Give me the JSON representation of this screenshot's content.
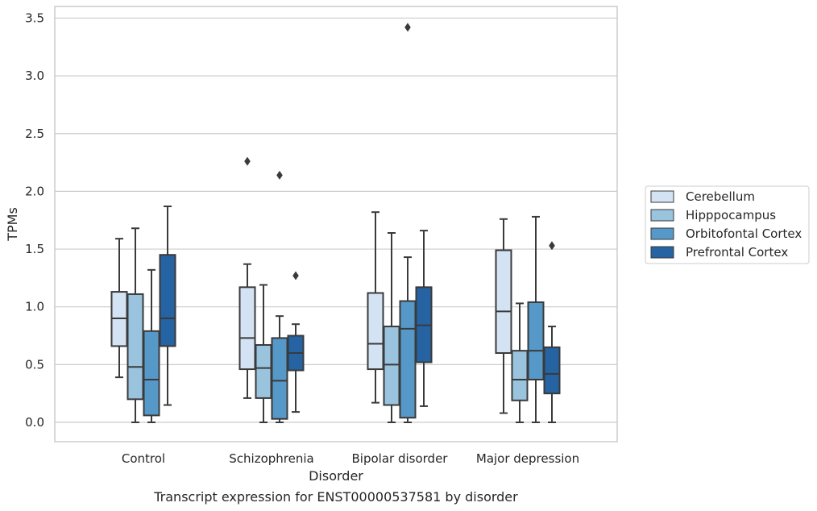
{
  "caption": "Transcript expression for ENST00000537581 by disorder",
  "chart_data": {
    "type": "boxplot",
    "xlabel": "Disorder",
    "ylabel": "TPMs",
    "ylim": [
      -0.16,
      3.6
    ],
    "yticks": [
      "0.0",
      "0.5",
      "1.0",
      "1.5",
      "2.0",
      "2.5",
      "3.0",
      "3.5"
    ],
    "grid": true,
    "legend_position": "right",
    "categories": [
      "Control",
      "Schizophrenia",
      "Bipolar disorder",
      "Major depression"
    ],
    "series": [
      {
        "name": "Cerebellum",
        "color": "#d3e3f3",
        "boxes": [
          {
            "whislo": 0.39,
            "q1": 0.66,
            "med": 0.9,
            "q3": 1.13,
            "whishi": 1.59,
            "fliers": []
          },
          {
            "whislo": 0.21,
            "q1": 0.46,
            "med": 0.73,
            "q3": 1.17,
            "whishi": 1.37,
            "fliers": [
              2.26
            ]
          },
          {
            "whislo": 0.17,
            "q1": 0.46,
            "med": 0.68,
            "q3": 1.12,
            "whishi": 1.82,
            "fliers": []
          },
          {
            "whislo": 0.08,
            "q1": 0.6,
            "med": 0.96,
            "q3": 1.49,
            "whishi": 1.76,
            "fliers": []
          }
        ]
      },
      {
        "name": "Hipppocampus",
        "color": "#9ac3de",
        "boxes": [
          {
            "whislo": 0.0,
            "q1": 0.2,
            "med": 0.48,
            "q3": 1.11,
            "whishi": 1.68,
            "fliers": []
          },
          {
            "whislo": 0.0,
            "q1": 0.21,
            "med": 0.47,
            "q3": 0.67,
            "whishi": 1.19,
            "fliers": []
          },
          {
            "whislo": 0.0,
            "q1": 0.15,
            "med": 0.5,
            "q3": 0.83,
            "whishi": 1.64,
            "fliers": []
          },
          {
            "whislo": 0.0,
            "q1": 0.19,
            "med": 0.37,
            "q3": 0.62,
            "whishi": 1.03,
            "fliers": []
          }
        ]
      },
      {
        "name": "Orbitofontal Cortex",
        "color": "#5698c7",
        "boxes": [
          {
            "whislo": 0.0,
            "q1": 0.06,
            "med": 0.37,
            "q3": 0.79,
            "whishi": 1.32,
            "fliers": []
          },
          {
            "whislo": 0.0,
            "q1": 0.03,
            "med": 0.36,
            "q3": 0.73,
            "whishi": 0.92,
            "fliers": [
              2.14
            ]
          },
          {
            "whislo": 0.0,
            "q1": 0.04,
            "med": 0.81,
            "q3": 1.05,
            "whishi": 1.43,
            "fliers": [
              3.42
            ]
          },
          {
            "whislo": 0.0,
            "q1": 0.37,
            "med": 0.62,
            "q3": 1.04,
            "whishi": 1.78,
            "fliers": []
          }
        ]
      },
      {
        "name": "Prefrontal Cortex",
        "color": "#2563a3",
        "boxes": [
          {
            "whislo": 0.15,
            "q1": 0.66,
            "med": 0.9,
            "q3": 1.45,
            "whishi": 1.87,
            "fliers": []
          },
          {
            "whislo": 0.09,
            "q1": 0.45,
            "med": 0.6,
            "q3": 0.75,
            "whishi": 0.85,
            "fliers": [
              1.27
            ]
          },
          {
            "whislo": 0.14,
            "q1": 0.52,
            "med": 0.84,
            "q3": 1.17,
            "whishi": 1.66,
            "fliers": []
          },
          {
            "whislo": 0.0,
            "q1": 0.25,
            "med": 0.42,
            "q3": 0.65,
            "whishi": 0.83,
            "fliers": [
              1.53
            ]
          }
        ]
      }
    ]
  }
}
